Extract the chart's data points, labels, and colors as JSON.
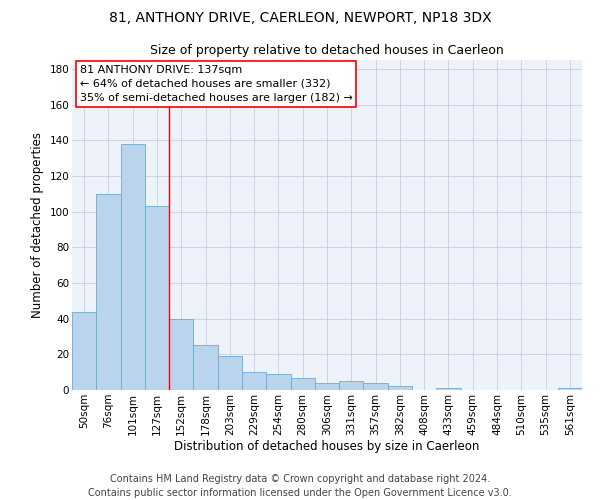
{
  "title": "81, ANTHONY DRIVE, CAERLEON, NEWPORT, NP18 3DX",
  "subtitle": "Size of property relative to detached houses in Caerleon",
  "xlabel": "Distribution of detached houses by size in Caerleon",
  "ylabel": "Number of detached properties",
  "bar_color": "#bad4ed",
  "bar_edge_color": "#6aaad4",
  "background_color": "#eef2fa",
  "grid_color": "#c8d0dc",
  "categories": [
    "50sqm",
    "76sqm",
    "101sqm",
    "127sqm",
    "152sqm",
    "178sqm",
    "203sqm",
    "229sqm",
    "254sqm",
    "280sqm",
    "306sqm",
    "331sqm",
    "357sqm",
    "382sqm",
    "408sqm",
    "433sqm",
    "459sqm",
    "484sqm",
    "510sqm",
    "535sqm",
    "561sqm"
  ],
  "values": [
    44,
    110,
    138,
    103,
    40,
    25,
    19,
    10,
    9,
    7,
    4,
    5,
    4,
    2,
    0,
    1,
    0,
    0,
    0,
    0,
    1
  ],
  "ylim": [
    0,
    185
  ],
  "yticks": [
    0,
    20,
    40,
    60,
    80,
    100,
    120,
    140,
    160,
    180
  ],
  "property_label": "81 ANTHONY DRIVE: 137sqm",
  "annotation_line1": "← 64% of detached houses are smaller (332)",
  "annotation_line2": "35% of semi-detached houses are larger (182) →",
  "red_line_bar_index": 3,
  "footer_line1": "Contains HM Land Registry data © Crown copyright and database right 2024.",
  "footer_line2": "Contains public sector information licensed under the Open Government Licence v3.0.",
  "title_fontsize": 10,
  "subtitle_fontsize": 9,
  "axis_label_fontsize": 8.5,
  "tick_fontsize": 7.5,
  "annotation_fontsize": 8,
  "footer_fontsize": 7
}
